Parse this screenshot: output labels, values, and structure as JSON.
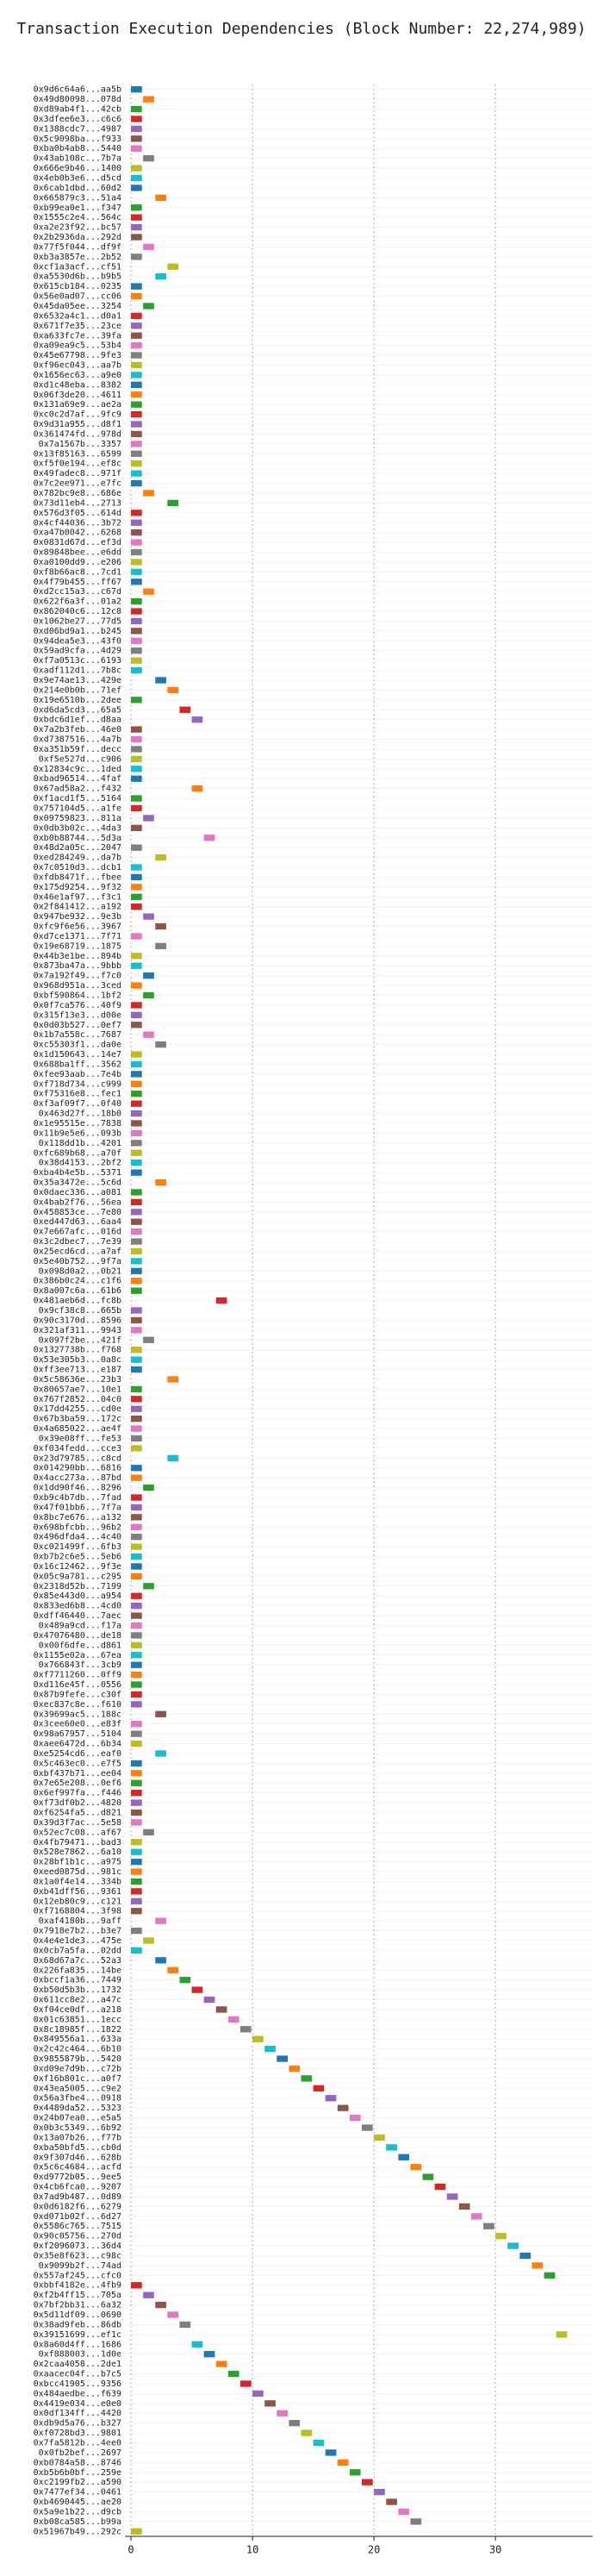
{
  "chart_data": {
    "type": "gantt",
    "title": "Transaction Execution Dependencies (Block Number: 22,274,989)",
    "colors": [
      "#1f77b4",
      "#ff7f0e",
      "#2ca02c",
      "#d62728",
      "#9467bd",
      "#8c564b",
      "#e377c2",
      "#7f7f7f",
      "#bcbd22",
      "#17becf"
    ],
    "bar_width": 0.9,
    "xlim": [
      -0.5,
      38
    ],
    "xticks": [
      0,
      10,
      20,
      30
    ],
    "grid": true,
    "categories": [
      "0x9d6c64a6...aa5b",
      "0x49d80098...078d",
      "0xd89ab4f1...42cb",
      "0x3dfee6e3...c6c6",
      "0x1388cdc7...4987",
      "0x5c9098ba...f933",
      "0xba0b4ab8...5440",
      "0x43ab108c...7b7a",
      "0x666e9b46...1400",
      "0x4eb0b3e6...d5cd",
      "0x6cab1dbd...60d2",
      "0x665879c3...51a4",
      "0xb99ea0e1...f347",
      "0x1555c2e4...564c",
      "0xa2e23f92...bc57",
      "0x2b2936da...292d",
      "0x77f5f044...df9f",
      "0xb3a3857e...2b52",
      "0xcf1a3acf...cf51",
      "0xa5530d6b...b9b5",
      "0x615cb184...0235",
      "0x56e0ad07...cc06",
      "0x45da05ee...3254",
      "0x6532a4c1...d0a1",
      "0x671f7e35...23ce",
      "0xa633fc7e...39fa",
      "0xa09ea9c5...53b4",
      "0x45e67798...9fe3",
      "0xf96ec043...aa7b",
      "0x1656ec63...a9e0",
      "0xd1c48eba...8382",
      "0x06f3de20...4611",
      "0x131a69e9...ae2a",
      "0xc0c2d7af...9fc9",
      "0x9d31a955...d8f1",
      "0x361474fd...978d",
      "0x7a1567b...3357",
      "0x13f85163...6599",
      "0xf5f0e194...ef8c",
      "0x49fadec8...971f",
      "0x7c2ee971...e7fc",
      "0x782bc9e8...686e",
      "0x73d11eb4...2713",
      "0x576d3f05...614d",
      "0x4cf44036...3b72",
      "0xa47b0042...6268",
      "0x0831d67d...ef3d",
      "0x89848bee...e6dd",
      "0xa0100dd9...e206",
      "0xf8b66ac8...7cd1",
      "0x4f79b455...ff67",
      "0xd2cc15a3...c67d",
      "0x622f6a3f...01a2",
      "0x862040c6...12c8",
      "0x1062be27...77d5",
      "0xd06bd9a1...b245",
      "0x94dea5e3...43f0",
      "0x59ad9cfa...4d29",
      "0xf7a0513c...6193",
      "0xadf112d1...7b8c",
      "0x9e74ae13...429e",
      "0x214e0b0b...71ef",
      "0x19e6510b...2dee",
      "0xd6da5cd3...65a5",
      "0xbdc6d1ef...d8aa",
      "0x7a2b3feb...46e0",
      "0xd7387516...4a7b",
      "0xa351b59f...decc",
      "0xf5e527d...c906",
      "0x12834c9c...1ded",
      "0xbad96514...4faf",
      "0x67ad58a2...f432",
      "0xf1acd1f5...5164",
      "0x757104d5...a1fe",
      "0x09759823...811a",
      "0x0db3b02c...4da3",
      "0xb0b88744...5d3a",
      "0x48d2a05c...2047",
      "0xed284249...da7b",
      "0x7c0510d3...dcb1",
      "0xfdb8471f...fbee",
      "0x175d9254...9f32",
      "0x46e1af97...f3c1",
      "0x2f841412...a192",
      "0x947be932...9e3b",
      "0xfc9f6e56...3967",
      "0xd7ce1371...7f71",
      "0x19e68719...1875",
      "0x44b3e1be...894b",
      "0x873ba47a...9bbb",
      "0x7a192f49...f7c0",
      "0x968d951a...3ced",
      "0xbf590864...1bf2",
      "0x0f7ca576...40f9",
      "0x315f13e3...d00e",
      "0x0d03b527...0ef7",
      "0x1b7a558c...7687",
      "0xc55303f1...da0e",
      "0x1d150643...14e7",
      "0x688ba1ff...3562",
      "0xfee93aab...7e4b",
      "0xf718d734...c999",
      "0xf75316e8...fec1",
      "0xf3af09f7...0f40",
      "0x463d27f...18b0",
      "0x1e95515e...7838",
      "0x11b9e5e6...093b",
      "0x118dd1b...4201",
      "0xfc689b68...a70f",
      "0x38d4153...2bf2",
      "0xba4b4e5b...5371",
      "0x35a3472e...5c6d",
      "0x0daec336...a081",
      "0x4bab2f76...56ea",
      "0x458853ce...7e80",
      "0xed447d63...6aa4",
      "0x7e667afc...016d",
      "0x3c2dbec7...7e39",
      "0x25ecd6cd...a7af",
      "0x5e40b752...9f7a",
      "0x098d0a2...0b21",
      "0x386b0c24...c1f6",
      "0x8a007c6a...61b6",
      "0x481aeb6d...fc8b",
      "0x9cf38c8...665b",
      "0x90c3170d...8596",
      "0x321af311...9943",
      "0x097f2be...421f",
      "0x1327738b...f768",
      "0x53e305b3...0a8c",
      "0xff3ee713...e187",
      "0x5c58636e...23b3",
      "0x80657ae7...10e1",
      "0x767f2852...04c0",
      "0x17dd4255...cd0e",
      "0x67b3ba59...172c",
      "0x4a685022...ae4f",
      "0x39e08ff...fe53",
      "0xf034fedd...cce3",
      "0x23d79785...c8cd",
      "0x014290bb...6816",
      "0x4acc273a...87bd",
      "0x1dd90f46...8296",
      "0xb9c4b7db...7fad",
      "0x47f01bb6...7f7a",
      "0x8bc7e676...a132",
      "0x698bfcbb...96b2",
      "0x496dfda4...4c40",
      "0xc021499f...6fb3",
      "0xb7b2c6e5...5eb6",
      "0x16c12462...9f3e",
      "0x05c9a781...c295",
      "0x2318d52b...7199",
      "0x85e443d0...a954",
      "0x833ed6b8...4cd0",
      "0xdff46440...7aec",
      "0x489a9cd...f17a",
      "0x47076480...de18",
      "0x00f6dfe...d861",
      "0x1155e02a...67ea",
      "0x766843f...3cb9",
      "0xf7711260...0ff9",
      "0xd116e45f...0556",
      "0x87b9fefe...c30f",
      "0xec837c8e...f610",
      "0x39699ac5...188c",
      "0x3cee60e0...e83f",
      "0x98a67957...5104",
      "0xaee6472d...6b34",
      "0xe5254cd6...eaf0",
      "0x5c463ec0...e7f5",
      "0xbf437b71...ee04",
      "0x7e65e208...0ef6",
      "0x6ef997fa...f446",
      "0xf73df0b2...4820",
      "0xf6254fa5...d821",
      "0x39d3f7ac...5e58",
      "0x52ec7c08...af67",
      "0x4fb79471...bad3",
      "0x528e7862...6a10",
      "0x28bf1b1c...a975",
      "0xeed0875d...981c",
      "0x1a0f4e14...334b",
      "0xb41dff56...9361",
      "0x12eb80c9...c121",
      "0xf7168804...3f98",
      "0xaf4180b...9aff",
      "0x7918e7b2...b3e7",
      "0x4e4e1de3...475e",
      "0x0cb7a5fa...02dd",
      "0x68d67a7c...52a3",
      "0x226fa835...14be",
      "0xbccf1a36...7449",
      "0xb50d5b3b...1732",
      "0x611cc8e2...a47c",
      "0xf04ce0df...a218",
      "0x01c63851...1ecc",
      "0x8c18985f...1822",
      "0x849556a1...633a",
      "0x2c42c464...6b10",
      "0x9855879b...5420",
      "0xd09e7d9b...c72b",
      "0xf16b801c...a0f7",
      "0x43ea5005...c9e2",
      "0x56a3fbe4...0918",
      "0x4489da52...5323",
      "0x24b07ea0...e5a5",
      "0x0b3c5349...6b92",
      "0x13a07b26...f77b",
      "0xba50bfd5...cb0d",
      "0x9f307d46...628b",
      "0x5c6c4684...acfd",
      "0xd9772b05...9ee5",
      "0x4cb6fca0...9207",
      "0x7ad9b487...0d89",
      "0x0d6182f6...6279",
      "0xd071b02f...6d27",
      "0x5586c765...7515",
      "0x90c05756...270d",
      "0xf2096073...36d4",
      "0x35e8f623...c98c",
      "0x9099b2f...74ad",
      "0x557af245...cfc0",
      "0xbbf4182e...4fb9",
      "0xf2b4ff15...705a",
      "0x7bf2bb31...6a32",
      "0x5d11df09...0690",
      "0x38ad9feb...86db",
      "0x39151699...ef1c",
      "0x8a60d4ff...1686",
      "0xf888003...1d0e",
      "0x2caa4058...2de1",
      "0xaacec04f...b7c5",
      "0xbcc41905...9356",
      "0x484aedbe...f639",
      "0x4419e034...e0e0",
      "0x0df134ff...4420",
      "0xdb9d5a76...b327",
      "0xf0728bd3...9801",
      "0x7fa5812b...4ee0",
      "0x0fb2bef...2697",
      "0xb0784a58...8746",
      "0xb5b6b0bf...259e",
      "0xc2199fb2...a590",
      "0x7477ef34...0461",
      "0xb4690445...ae20",
      "0x5a9e1b22...d9cb",
      "0xb08ca585...b99a",
      "0x51967b49...292c"
    ],
    "values": [
      0,
      1,
      0,
      0,
      0,
      0,
      0,
      1,
      0,
      0,
      0,
      2,
      0,
      0,
      0,
      0,
      1,
      0,
      3,
      2,
      0,
      0,
      1,
      0,
      0,
      0,
      0,
      0,
      0,
      0,
      0,
      0,
      0,
      0,
      0,
      0,
      0,
      0,
      0,
      0,
      0,
      1,
      3,
      0,
      0,
      0,
      0,
      0,
      0,
      0,
      0,
      1,
      0,
      0,
      0,
      0,
      0,
      0,
      0,
      0,
      2,
      3,
      0,
      4,
      5,
      0,
      0,
      0,
      0,
      0,
      0,
      5,
      0,
      0,
      1,
      0,
      6,
      0,
      2,
      0,
      0,
      0,
      0,
      0,
      1,
      2,
      0,
      2,
      0,
      0,
      1,
      0,
      1,
      0,
      0,
      0,
      1,
      2,
      0,
      0,
      0,
      0,
      0,
      0,
      0,
      0,
      0,
      0,
      0,
      0,
      0,
      2,
      0,
      0,
      0,
      0,
      0,
      0,
      0,
      0,
      0,
      0,
      0,
      7,
      0,
      0,
      0,
      1,
      0,
      0,
      0,
      3,
      0,
      0,
      0,
      0,
      0,
      0,
      0,
      3,
      0,
      0,
      1,
      0,
      0,
      0,
      0,
      0,
      0,
      0,
      0,
      0,
      1,
      0,
      0,
      0,
      0,
      0,
      0,
      0,
      0,
      0,
      0,
      0,
      0,
      2,
      0,
      0,
      0,
      2,
      0,
      0,
      0,
      0,
      0,
      0,
      0,
      1,
      0,
      0,
      0,
      0,
      0,
      0,
      0,
      0,
      2,
      0,
      1,
      0,
      2,
      3,
      4,
      5,
      6,
      7,
      8,
      9,
      10,
      11,
      12,
      13,
      14,
      15,
      16,
      17,
      18,
      19,
      20,
      21,
      22,
      23,
      24,
      25,
      26,
      27,
      28,
      29,
      30,
      31,
      32,
      33,
      34,
      0,
      1,
      2,
      3,
      4,
      35,
      5,
      6,
      7,
      8,
      9,
      10,
      11,
      12,
      13,
      14,
      15,
      16,
      17,
      18,
      19,
      20,
      21,
      22,
      23,
      0
    ]
  }
}
